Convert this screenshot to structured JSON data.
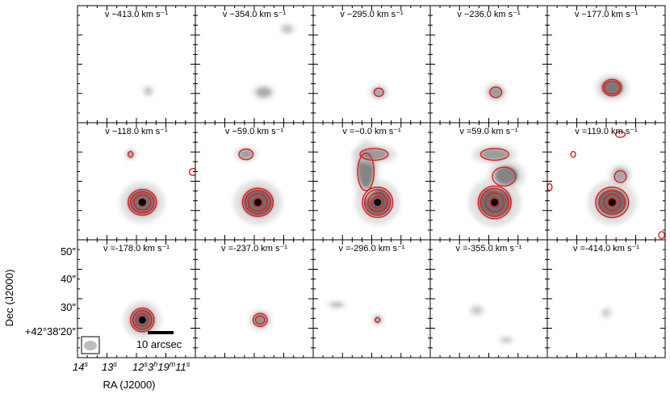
{
  "chart_data": {
    "type": "heatmap",
    "layout": {
      "rows": 3,
      "cols": 5
    },
    "xlabel": "RA (J2000)",
    "ylabel": "Dec (J2000)",
    "x_tick_labels": [
      "14",
      "13",
      "12",
      "11"
    ],
    "y_tick_labels": [
      "50″",
      "40″",
      "30″",
      "+42°38′20″"
    ],
    "scale_bar": {
      "label": "10 arcsec",
      "length_arcsec": 10
    },
    "contour_color": "#e41a1c",
    "panels": [
      {
        "velocity_label": "v −413.0 km s⁻¹",
        "velocity": -413.0
      },
      {
        "velocity_label": "v −354.0 km s⁻¹",
        "velocity": -354.0
      },
      {
        "velocity_label": "v −295.0 km s⁻¹",
        "velocity": -295.0
      },
      {
        "velocity_label": "v −236.0 km s⁻¹",
        "velocity": -236.0
      },
      {
        "velocity_label": "v −177.0 km s⁻¹",
        "velocity": -177.0
      },
      {
        "velocity_label": "v −118.0 km s⁻¹",
        "velocity": -118.0
      },
      {
        "velocity_label": "v −59.0 km s⁻¹",
        "velocity": -59.0
      },
      {
        "velocity_label": "v =−0.0 km s⁻¹",
        "velocity": 0.0
      },
      {
        "velocity_label": "v =59.0 km s⁻¹",
        "velocity": 59.0
      },
      {
        "velocity_label": "v =119.0 km s⁻¹",
        "velocity": 119.0
      },
      {
        "velocity_label": "v =-178.0 km s⁻¹",
        "velocity": -178.0
      },
      {
        "velocity_label": "v =-237.0 km s⁻¹",
        "velocity": -237.0
      },
      {
        "velocity_label": "v =-296.0 km s⁻¹",
        "velocity": -296.0
      },
      {
        "velocity_label": "v =-355.0 km s⁻¹",
        "velocity": -355.0
      },
      {
        "velocity_label": "v =-414.0 km s⁻¹",
        "velocity": -414.0
      }
    ]
  }
}
